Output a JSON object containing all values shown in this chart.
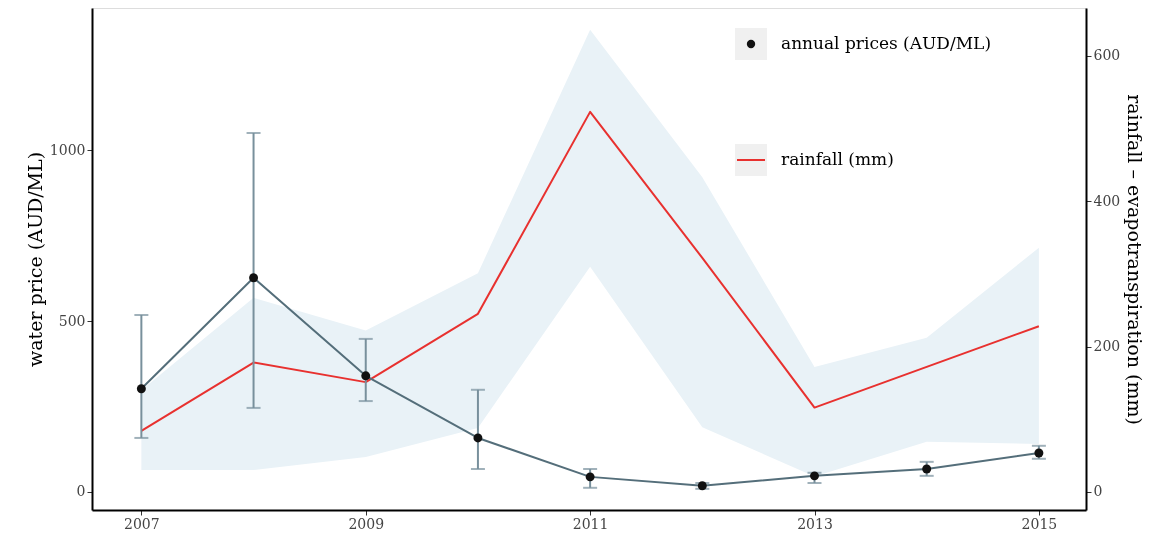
{
  "chart_data": {
    "type": "line",
    "ylabel": "water price (AUD/ML)",
    "y2label": "rainfall – evapotranspiration (mm)",
    "x": [
      2007,
      2008,
      2009,
      2010,
      2011,
      2012,
      2013,
      2014,
      2015
    ],
    "xlim": [
      2006.56,
      2015.42
    ],
    "xticks": [
      2007,
      2009,
      2011,
      2013,
      2015
    ],
    "ylim": [
      -53,
      1417
    ],
    "yticks": [
      0,
      500,
      1000
    ],
    "y2lim": [
      -25,
      666
    ],
    "y2ticks": [
      0,
      200,
      400,
      600
    ],
    "legend": "top right",
    "series": [
      {
        "name": "annual prices (AUD/ML)",
        "marker": "circle",
        "color": "#546e7a",
        "values": [
          302,
          627,
          340,
          158,
          44,
          18,
          47,
          67,
          114
        ],
        "errors": [
          [
            158,
            518
          ],
          [
            246,
            1051
          ],
          [
            266,
            448
          ],
          [
            67,
            299
          ],
          [
            12,
            67
          ],
          [
            9,
            26
          ],
          [
            26,
            56
          ],
          [
            47,
            88
          ],
          [
            97,
            135
          ]
        ]
      },
      {
        "name": "rainfall (mm)",
        "axis": "y2",
        "color": "#e8312f",
        "values": [
          84,
          178,
          151,
          245,
          523,
          322,
          116,
          172,
          228
        ],
        "lower": [
          30,
          30,
          48,
          88,
          310,
          89,
          21,
          69,
          66
        ],
        "upper": [
          140,
          267,
          222,
          301,
          636,
          433,
          172,
          212,
          336
        ]
      }
    ]
  }
}
